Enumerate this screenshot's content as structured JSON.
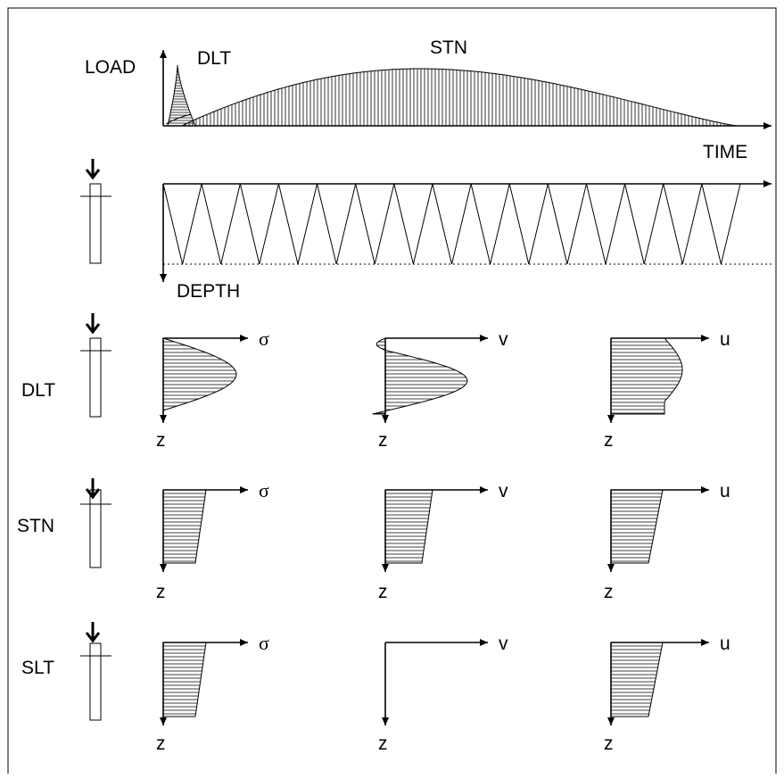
{
  "load_time": {
    "y_label": "LOAD",
    "x_label": "TIME",
    "dlt_label": "DLT",
    "stn_label": "STN"
  },
  "depth": {
    "y_label": "DEPTH"
  },
  "rows": [
    {
      "label": "DLT",
      "panels": [
        {
          "x_label": "σ",
          "z_label": "z"
        },
        {
          "x_label": "v",
          "z_label": "z"
        },
        {
          "x_label": "u",
          "z_label": "z"
        }
      ]
    },
    {
      "label": "STN",
      "panels": [
        {
          "x_label": "σ",
          "z_label": "z"
        },
        {
          "x_label": "v",
          "z_label": "z"
        },
        {
          "x_label": "u",
          "z_label": "z"
        }
      ]
    },
    {
      "label": "SLT",
      "panels": [
        {
          "x_label": "σ",
          "z_label": "z"
        },
        {
          "x_label": "v",
          "z_label": "z"
        },
        {
          "x_label": "u",
          "z_label": "z"
        }
      ]
    }
  ]
}
